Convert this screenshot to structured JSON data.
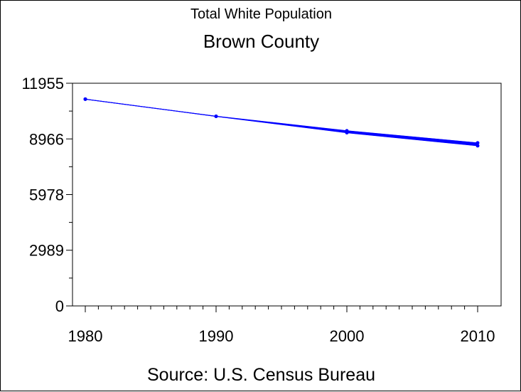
{
  "page": {
    "subtitle": "Total White Population",
    "title": "Brown County",
    "footnote": "Source: U.S. Census Bureau"
  },
  "chart_data": {
    "type": "line",
    "title": "Brown County",
    "subtitle": "Total White Population",
    "xlabel": "",
    "ylabel": "",
    "x_ticks": [
      "1980",
      "1990",
      "2000",
      "2010"
    ],
    "y_ticks": [
      "0",
      "2989",
      "5978",
      "8966",
      "11955"
    ],
    "xlim": [
      1980,
      2010
    ],
    "ylim": [
      0,
      11955
    ],
    "color": "#0000ff",
    "grid": false,
    "series": [
      {
        "x": [
          1980,
          1990,
          2000,
          2010
        ],
        "values": [
          11100,
          10180,
          9400,
          8750
        ]
      },
      {
        "x": [
          1980,
          1990,
          2000,
          2010
        ],
        "values": [
          11100,
          10180,
          9300,
          8600
        ]
      }
    ]
  }
}
